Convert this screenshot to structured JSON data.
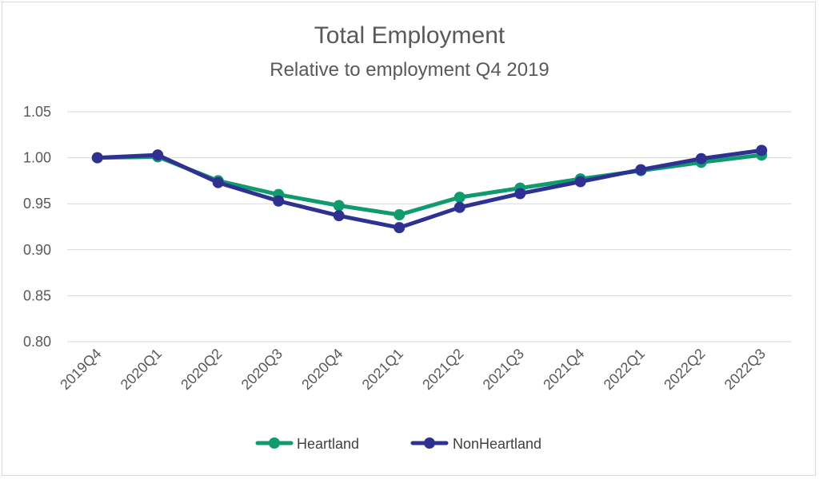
{
  "chart_data": {
    "type": "line",
    "title": "Total Employment",
    "subtitle": "Relative to employment Q4 2019",
    "xlabel": "",
    "ylabel": "",
    "categories": [
      "2019Q4",
      "2020Q1",
      "2020Q2",
      "2020Q3",
      "2020Q4",
      "2021Q1",
      "2021Q2",
      "2021Q3",
      "2021Q4",
      "2022Q1",
      "2022Q2",
      "2022Q3"
    ],
    "ylim": [
      0.8,
      1.05
    ],
    "yticks": [
      "0.80",
      "0.85",
      "0.90",
      "0.95",
      "1.00",
      "1.05"
    ],
    "grid": true,
    "legend": "bottom",
    "series": [
      {
        "name": "Heartland",
        "color": "#0f9b6e",
        "values": [
          1.0,
          1.001,
          0.975,
          0.96,
          0.948,
          0.938,
          0.957,
          0.967,
          0.977,
          0.986,
          0.995,
          1.003
        ]
      },
      {
        "name": "NonHeartland",
        "color": "#2e3192",
        "values": [
          1.0,
          1.003,
          0.973,
          0.953,
          0.937,
          0.924,
          0.946,
          0.961,
          0.974,
          0.987,
          0.999,
          1.008
        ]
      }
    ]
  }
}
